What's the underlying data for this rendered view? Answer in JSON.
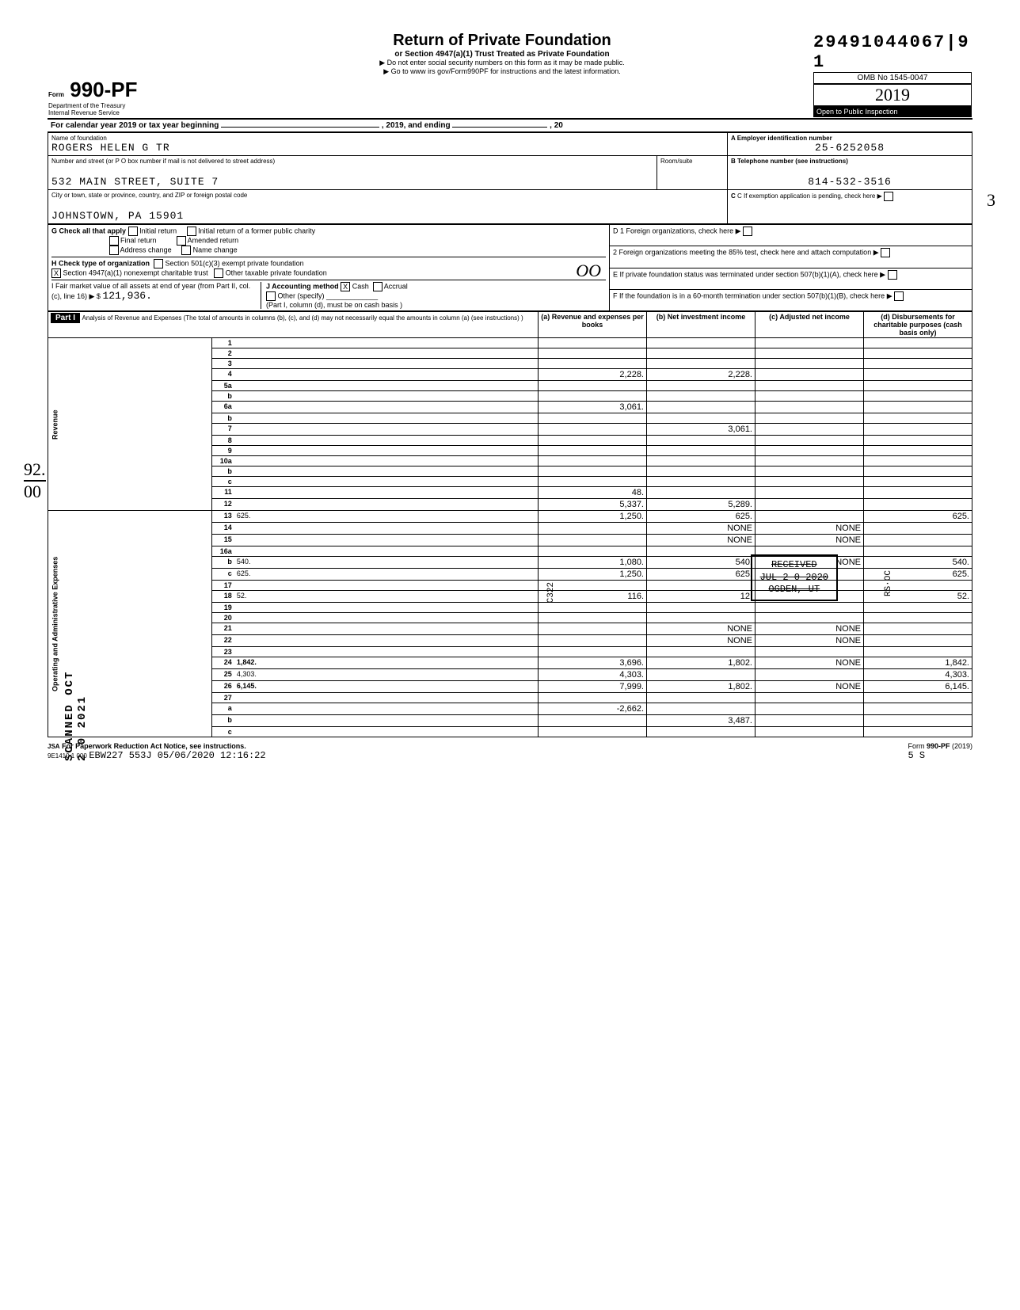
{
  "dln": "29491044067|9  1",
  "omb": "OMB No 1545-0047",
  "form_no": "990-PF",
  "form_prefix": "Form",
  "year": "2019",
  "year_outline": "2019",
  "main_title": "Return of Private Foundation",
  "sub_title": "or Section 4947(a)(1) Trust Treated as Private Foundation",
  "instr1": "▶ Do not enter social security numbers on this form as it may be made public.",
  "instr2": "▶ Go to www irs gov/Form990PF for instructions and the latest information.",
  "dept": "Department of the Treasury",
  "irs": "Internal Revenue Service",
  "public": "Open to Public Inspection",
  "cal_year": "For calendar year 2019 or tax year beginning",
  "ending": ", 2019, and ending",
  "name_label": "Name of foundation",
  "ein_label": "A  Employer identification number",
  "foundation_name": "ROGERS HELEN G TR",
  "ein": "25-6252058",
  "addr_label": "Number and street (or P O  box number if mail is not delivered to street address)",
  "room_label": "Room/suite",
  "phone_label": "B  Telephone number (see instructions)",
  "address": "532 MAIN STREET, SUITE 7",
  "phone": "814-532-3516",
  "city_label": "City or town, state or province, country, and ZIP or foreign postal code",
  "city": "JOHNSTOWN, PA 15901",
  "c_label": "C  If exemption application is pending, check here",
  "g_label": "G Check all that apply",
  "g_opts": [
    "Initial return",
    "Final return",
    "Address change",
    "Initial return of a former public charity",
    "Amended return",
    "Name change"
  ],
  "h_label": "H Check type of organization",
  "h_opts": [
    "Section 501(c)(3) exempt private foundation",
    "Section 4947(a)(1) nonexempt charitable trust",
    "Other taxable private foundation"
  ],
  "i_label": "I  Fair market value of all assets at end of year (from Part II, col. (c), line 16) ▶ $",
  "i_val": "121,936.",
  "j_label": "J Accounting method",
  "j_cash": "Cash",
  "j_accrual": "Accrual",
  "j_other": "Other (specify)",
  "j_note": "(Part I, column (d), must be on cash basis )",
  "d_items": [
    "D  1 Foreign organizations, check here",
    "2 Foreign organizations meeting the 85% test, check here and attach computation",
    "E  If private foundation status was terminated under section 507(b)(1)(A), check here",
    "F  If the foundation is in a 60-month termination under section 507(b)(1)(B), check here"
  ],
  "part1_label": "Part I",
  "part1_title": "Analysis of Revenue and Expenses (The total of amounts in columns (b), (c), and (d) may not necessarily equal the amounts in column (a) (see instructions) )",
  "col_a": "(a) Revenue and expenses per books",
  "col_b": "(b) Net investment income",
  "col_c": "(c) Adjusted net income",
  "col_d": "(d) Disbursements for charitable purposes (cash basis only)",
  "oo_hand": "OO",
  "three_hand": "3",
  "frac_hand": "92/00",
  "received_stamp": {
    "line1": "RECEIVED",
    "line2": "JUL 2 0 2020",
    "line3": "OGDEN, UT"
  },
  "rs_oc_stamp": "RS·OC",
  "side_stamp": "SCANNED OCT 2 0 2021",
  "c322": "C322",
  "rows": [
    {
      "n": "1",
      "d": "",
      "a": "",
      "b": "",
      "c": ""
    },
    {
      "n": "2",
      "d": "",
      "a": "",
      "b": "",
      "c": ""
    },
    {
      "n": "3",
      "d": "",
      "a": "",
      "b": "",
      "c": ""
    },
    {
      "n": "4",
      "d": "",
      "a": "2,228.",
      "b": "2,228.",
      "c": ""
    },
    {
      "n": "5a",
      "d": "",
      "a": "",
      "b": "",
      "c": ""
    },
    {
      "n": "b",
      "d": "",
      "a": "",
      "b": "",
      "c": ""
    },
    {
      "n": "6a",
      "d": "",
      "a": "3,061.",
      "b": "",
      "c": ""
    },
    {
      "n": "b",
      "d": "",
      "a": "",
      "b": "",
      "c": ""
    },
    {
      "n": "7",
      "d": "",
      "a": "",
      "b": "3,061.",
      "c": ""
    },
    {
      "n": "8",
      "d": "",
      "a": "",
      "b": "",
      "c": ""
    },
    {
      "n": "9",
      "d": "",
      "a": "",
      "b": "",
      "c": ""
    },
    {
      "n": "10a",
      "d": "",
      "a": "",
      "b": "",
      "c": ""
    },
    {
      "n": "b",
      "d": "",
      "a": "",
      "b": "",
      "c": ""
    },
    {
      "n": "c",
      "d": "",
      "a": "",
      "b": "",
      "c": ""
    },
    {
      "n": "11",
      "d": "",
      "a": "48.",
      "b": "",
      "c": ""
    },
    {
      "n": "12",
      "d": "",
      "a": "5,337.",
      "b": "5,289.",
      "c": "",
      "bold": true
    },
    {
      "n": "13",
      "d": "625.",
      "a": "1,250.",
      "b": "625.",
      "c": ""
    },
    {
      "n": "14",
      "d": "",
      "a": "",
      "b": "NONE",
      "c": "NONE"
    },
    {
      "n": "15",
      "d": "",
      "a": "",
      "b": "NONE",
      "c": "NONE"
    },
    {
      "n": "16a",
      "d": "",
      "a": "",
      "b": "",
      "c": ""
    },
    {
      "n": "b",
      "d": "540.",
      "a": "1,080.",
      "b": "540.",
      "c": "NONE"
    },
    {
      "n": "c",
      "d": "625.",
      "a": "1,250.",
      "b": "625.",
      "c": ""
    },
    {
      "n": "17",
      "d": "",
      "a": "",
      "b": "",
      "c": ""
    },
    {
      "n": "18",
      "d": "52.",
      "a": "116.",
      "b": "12.",
      "c": ""
    },
    {
      "n": "19",
      "d": "",
      "a": "",
      "b": "",
      "c": ""
    },
    {
      "n": "20",
      "d": "",
      "a": "",
      "b": "",
      "c": ""
    },
    {
      "n": "21",
      "d": "",
      "a": "",
      "b": "NONE",
      "c": "NONE"
    },
    {
      "n": "22",
      "d": "",
      "a": "",
      "b": "NONE",
      "c": "NONE"
    },
    {
      "n": "23",
      "d": "",
      "a": "",
      "b": "",
      "c": ""
    },
    {
      "n": "24",
      "d": "1,842.",
      "a": "3,696.",
      "b": "1,802.",
      "c": "NONE",
      "bold": true
    },
    {
      "n": "25",
      "d": "4,303.",
      "a": "4,303.",
      "b": "",
      "c": ""
    },
    {
      "n": "26",
      "d": "6,145.",
      "a": "7,999.",
      "b": "1,802.",
      "c": "NONE",
      "bold": true
    },
    {
      "n": "27",
      "d": "",
      "a": "",
      "b": "",
      "c": ""
    },
    {
      "n": "a",
      "d": "",
      "a": "-2,662.",
      "b": "",
      "c": ""
    },
    {
      "n": "b",
      "d": "",
      "a": "",
      "b": "3,487.",
      "c": "",
      "bold": true
    },
    {
      "n": "c",
      "d": "",
      "a": "",
      "b": "",
      "c": "",
      "bold": true
    }
  ],
  "vert_rev": "Revenue",
  "vert_ops": "Operating and Administrative Expenses",
  "paperwork": "For Paperwork Reduction Act Notice, see instructions.",
  "form_footer": "Form 990-PF (2019)",
  "jsa": "JSA",
  "bottom_code": "9E1410 1 000",
  "bottom_ts": "EBW227 553J 05/06/2020 12:16:22",
  "bottom_right": "5        S"
}
